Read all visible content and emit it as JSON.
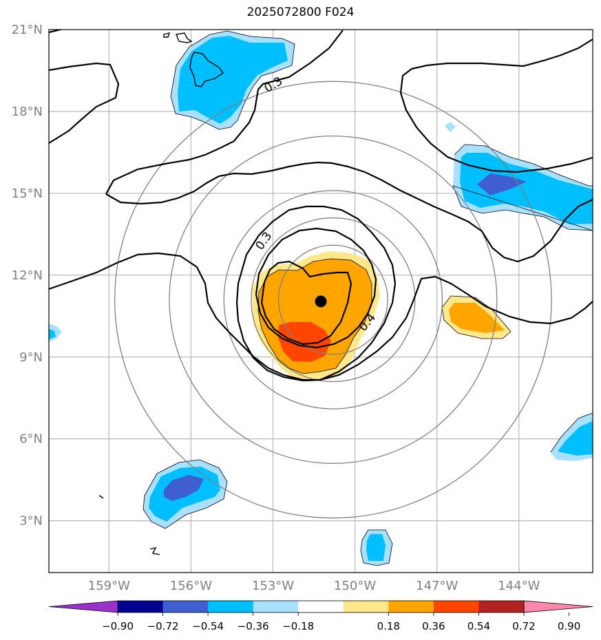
{
  "title": "2025072800 F024",
  "map": {
    "lat_ticks": [
      {
        "value": 21,
        "label": "21°N"
      },
      {
        "value": 18,
        "label": "18°N"
      },
      {
        "value": 15,
        "label": "15°N"
      },
      {
        "value": 12,
        "label": "12°N"
      },
      {
        "value": 9,
        "label": "9°N"
      },
      {
        "value": 6,
        "label": "6°N"
      },
      {
        "value": 3,
        "label": "3°N"
      }
    ],
    "lon_ticks": [
      {
        "value": -159,
        "label": "159°W"
      },
      {
        "value": -156,
        "label": "156°W"
      },
      {
        "value": -153,
        "label": "153°W"
      },
      {
        "value": -150,
        "label": "150°W"
      },
      {
        "value": -147,
        "label": "147°W"
      },
      {
        "value": -144,
        "label": "144°W"
      }
    ],
    "storm_center": {
      "lon": -151.3,
      "lat": 11.1
    },
    "range_rings_center": {
      "lon": -150.8,
      "lat": 11.1
    },
    "range_rings_deg": [
      2,
      3,
      4,
      6,
      8
    ],
    "contour_labels": [
      "0.3",
      "0.3",
      "0.4"
    ],
    "contour_levels": [
      0.3,
      0.4,
      0.5
    ],
    "colors": {
      "cbar_extend_low": "#9932cc",
      "cbar_extend_high": "#ff88aa",
      "grid": "#b0b0b0",
      "ring": "#808080"
    }
  },
  "colorbar": {
    "colors": [
      "#9932cc",
      "#000090",
      "#3f5fd0",
      "#00bfff",
      "#a8e0ff",
      "#ffffff",
      "#ffe88a",
      "#ffa500",
      "#ff4500",
      "#b22222",
      "#ff88aa"
    ],
    "ticks": [
      {
        "value": -0.9,
        "label": "−0.90"
      },
      {
        "value": -0.72,
        "label": "−0.72"
      },
      {
        "value": -0.54,
        "label": "−0.54"
      },
      {
        "value": -0.36,
        "label": "−0.36"
      },
      {
        "value": -0.18,
        "label": "−0.18"
      },
      {
        "value": 0.18,
        "label": "0.18"
      },
      {
        "value": 0.36,
        "label": "0.36"
      },
      {
        "value": 0.54,
        "label": "0.54"
      },
      {
        "value": 0.72,
        "label": "0.72"
      },
      {
        "value": 0.9,
        "label": "0.90"
      }
    ]
  }
}
